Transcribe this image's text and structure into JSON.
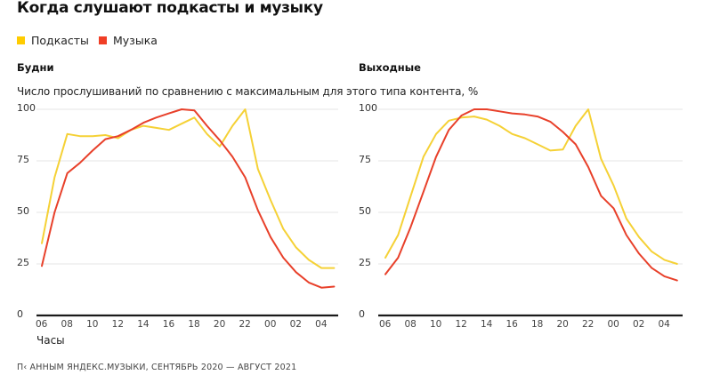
{
  "header": {
    "title": "Когда слушают подкасты и музыку"
  },
  "legend": [
    {
      "label": "Подкасты",
      "color": "#FFCC00"
    },
    {
      "label": "Музыка",
      "color": "#F03E25"
    }
  ],
  "subtitle": "Число прослушиваний по сравнению с максимальным для этого типа контента, %",
  "x_axis_title": "Часы",
  "footer": "П‹ АННЫМ ЯНДЕКС.МУЗЫКИ, СЕНТЯБРЬ 2020 — АВГУСТ 2021",
  "colors": {
    "podcasts_line": "#F5D136",
    "music_line": "#E8402A",
    "grid": "#E6E6E6",
    "axis": "#1A1A1A"
  },
  "chart_data": [
    {
      "type": "line",
      "title": "Будни",
      "subtitle": "Число прослушиваний по сравнению с максимальным для этого типа контента, %",
      "xlabel": "Часы",
      "ylabel": "",
      "ylim": [
        0,
        100
      ],
      "yticks": [
        "0",
        "25",
        "50",
        "75",
        "100"
      ],
      "grid": true,
      "legend_position": "top-left",
      "x": [
        "06",
        "07",
        "08",
        "09",
        "10",
        "11",
        "12",
        "13",
        "14",
        "15",
        "16",
        "17",
        "18",
        "19",
        "20",
        "21",
        "22",
        "23",
        "00",
        "01",
        "02",
        "03",
        "04",
        "05"
      ],
      "xtick_labels": [
        "06",
        "08",
        "10",
        "12",
        "14",
        "16",
        "18",
        "20",
        "22",
        "00",
        "02",
        "04"
      ],
      "series": [
        {
          "name": "Подкасты",
          "color": "#F5D136",
          "values": [
            35,
            67,
            88,
            87,
            87,
            87.5,
            86,
            90,
            92,
            91,
            90,
            93,
            96,
            88,
            82,
            92,
            100,
            71,
            56,
            42,
            33,
            27,
            23,
            23
          ]
        },
        {
          "name": "Музыка",
          "color": "#E8402A",
          "values": [
            24,
            50,
            69,
            74,
            80,
            85.5,
            87,
            90,
            93.5,
            96,
            98,
            100,
            99.5,
            92,
            85,
            77,
            67,
            51,
            38,
            28,
            21,
            16,
            13.5,
            14
          ]
        }
      ]
    },
    {
      "type": "line",
      "title": "Выходные",
      "xlabel": "",
      "ylabel": "",
      "ylim": [
        0,
        100
      ],
      "yticks": [
        "0",
        "25",
        "50",
        "75",
        "100"
      ],
      "grid": true,
      "x": [
        "06",
        "07",
        "08",
        "09",
        "10",
        "11",
        "12",
        "13",
        "14",
        "15",
        "16",
        "17",
        "18",
        "19",
        "20",
        "21",
        "22",
        "23",
        "00",
        "01",
        "02",
        "03",
        "04",
        "05"
      ],
      "xtick_labels": [
        "06",
        "08",
        "10",
        "12",
        "14",
        "16",
        "18",
        "20",
        "22",
        "00",
        "02",
        "04"
      ],
      "series": [
        {
          "name": "Подкасты",
          "color": "#F5D136",
          "values": [
            28,
            39,
            58,
            77,
            88,
            94.5,
            96,
            96.5,
            95,
            92,
            88,
            86,
            83,
            80,
            80.5,
            92,
            100,
            76,
            63,
            47,
            38,
            31,
            27,
            25
          ]
        },
        {
          "name": "Музыка",
          "color": "#E8402A",
          "values": [
            20,
            28,
            43,
            60,
            77,
            90,
            97,
            100,
            100,
            99,
            98,
            97.5,
            96.5,
            94,
            89,
            83,
            72,
            58,
            52,
            39,
            30,
            23,
            19,
            17
          ]
        }
      ]
    }
  ]
}
